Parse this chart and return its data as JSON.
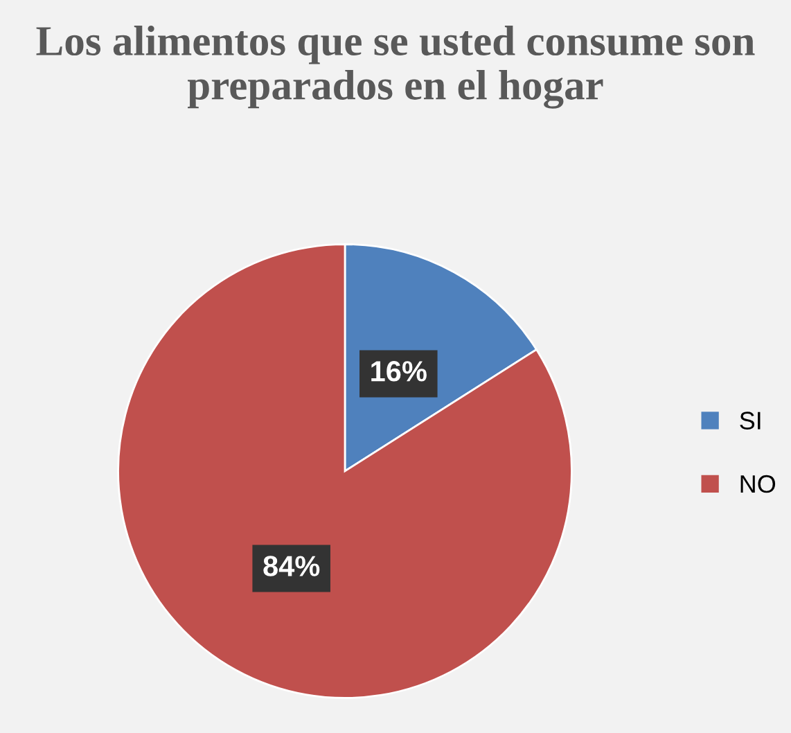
{
  "chart_data": {
    "type": "pie",
    "title": "Los alimentos que se usted consume son preparados en el hogar",
    "categories": [
      "SI",
      "NO"
    ],
    "values": [
      16,
      84
    ],
    "colors": [
      "#4f81bd",
      "#c0504d"
    ],
    "value_labels": [
      "16%",
      "84%"
    ],
    "legend": "right"
  }
}
